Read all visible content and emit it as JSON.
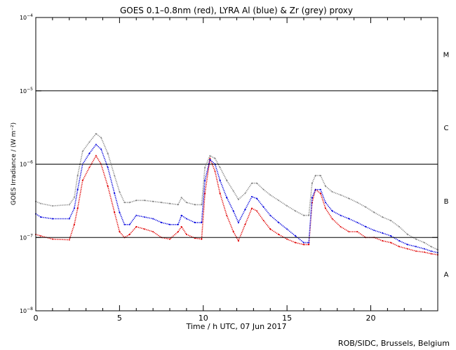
{
  "chart_data": {
    "type": "line",
    "title": "GOES 0.1–0.8nm (red), LYRA Al (blue) & Zr (grey) proxy",
    "xlabel": "Time / h UTC, 07 Jun 2017",
    "ylabel": "GOES Irradiance / (W m⁻²)",
    "xlim": [
      0,
      24
    ],
    "ylim": [
      1e-08,
      0.0001
    ],
    "yscale": "log",
    "x_ticks": [
      0,
      5,
      10,
      15,
      20
    ],
    "x_tick_labels": [
      "0",
      "5",
      "10",
      "15",
      "20"
    ],
    "y_tick_labels": [
      {
        "base": "10",
        "exp": "−4"
      },
      {
        "base": "10",
        "exp": "−5"
      },
      {
        "base": "10",
        "exp": "−6"
      },
      {
        "base": "10",
        "exp": "−7"
      },
      {
        "base": "10",
        "exp": "−8"
      }
    ],
    "flare_class_lines": [
      1e-05,
      1e-06,
      1e-07
    ],
    "flare_classes": [
      "M",
      "C",
      "B",
      "A"
    ],
    "credit": "ROB/SIDC, Brussels, Belgium",
    "colors": {
      "red": "#e00000",
      "blue": "#0000dd",
      "grey": "#888888"
    },
    "series": [
      {
        "color": "red",
        "x": [
          0,
          0.3,
          1,
          2,
          2.3,
          2.5,
          2.8,
          3.2,
          3.6,
          3.9,
          4.3,
          4.7,
          5.0,
          5.3,
          5.6,
          6.0,
          6.5,
          7.0,
          7.5,
          8.0,
          8.5,
          8.7,
          9.0,
          9.5,
          9.9,
          10.1,
          10.4,
          10.7,
          11.0,
          11.4,
          11.8,
          12.1,
          12.5,
          12.9,
          13.2,
          13.6,
          14.0,
          14.5,
          15.0,
          15.5,
          16.0,
          16.3,
          16.5,
          16.7,
          17.0,
          17.3,
          17.7,
          18.2,
          18.7,
          19.2,
          19.7,
          20.2,
          20.7,
          21.2,
          21.7,
          22.2,
          22.7,
          23.2,
          23.6,
          24
        ],
        "y": [
          1.1e-07,
          1.05e-07,
          9.5e-08,
          9.3e-08,
          1.5e-07,
          2.5e-07,
          6e-07,
          9e-07,
          1.3e-06,
          1e-06,
          5e-07,
          2.2e-07,
          1.2e-07,
          1e-07,
          1.1e-07,
          1.4e-07,
          1.3e-07,
          1.2e-07,
          1e-07,
          9.5e-08,
          1.2e-07,
          1.4e-07,
          1.1e-07,
          9.8e-08,
          9.5e-08,
          4e-07,
          1.2e-06,
          8e-07,
          4e-07,
          2e-07,
          1.2e-07,
          9e-08,
          1.5e-07,
          2.5e-07,
          2.3e-07,
          1.7e-07,
          1.3e-07,
          1.1e-07,
          9.5e-08,
          8.5e-08,
          8e-08,
          8e-08,
          3e-07,
          4.5e-07,
          4e-07,
          2.5e-07,
          1.8e-07,
          1.4e-07,
          1.2e-07,
          1.2e-07,
          1e-07,
          1e-07,
          9e-08,
          8.5e-08,
          7.5e-08,
          7e-08,
          6.5e-08,
          6.3e-08,
          6e-08,
          5.8e-08
        ]
      },
      {
        "color": "blue",
        "x": [
          0,
          0.3,
          1,
          2,
          2.3,
          2.5,
          2.8,
          3.2,
          3.6,
          3.9,
          4.3,
          4.7,
          5.0,
          5.3,
          5.6,
          6.0,
          6.5,
          7.0,
          7.5,
          8.0,
          8.5,
          8.7,
          9.0,
          9.5,
          9.9,
          10.1,
          10.4,
          10.7,
          11.0,
          11.4,
          11.8,
          12.1,
          12.5,
          12.9,
          13.2,
          13.6,
          14.0,
          14.5,
          15.0,
          15.5,
          16.0,
          16.3,
          16.5,
          16.7,
          17.0,
          17.3,
          17.7,
          18.2,
          18.7,
          19.2,
          19.7,
          20.2,
          20.7,
          21.2,
          21.7,
          22.2,
          22.7,
          23.2,
          23.6,
          24
        ],
        "y": [
          2.1e-07,
          1.9e-07,
          1.8e-07,
          1.8e-07,
          2.5e-07,
          4.5e-07,
          1e-06,
          1.4e-06,
          1.85e-06,
          1.6e-06,
          9e-07,
          4e-07,
          2.2e-07,
          1.5e-07,
          1.5e-07,
          2e-07,
          1.9e-07,
          1.8e-07,
          1.6e-07,
          1.5e-07,
          1.5e-07,
          2e-07,
          1.8e-07,
          1.6e-07,
          1.6e-07,
          6e-07,
          1.15e-06,
          1e-06,
          6e-07,
          3.5e-07,
          2.3e-07,
          1.6e-07,
          2.4e-07,
          3.6e-07,
          3.4e-07,
          2.6e-07,
          2e-07,
          1.6e-07,
          1.3e-07,
          1.05e-07,
          8.5e-08,
          8.5e-08,
          3.5e-07,
          4.5e-07,
          4.5e-07,
          3e-07,
          2.3e-07,
          2e-07,
          1.8e-07,
          1.6e-07,
          1.4e-07,
          1.25e-07,
          1.15e-07,
          1.05e-07,
          9e-08,
          8e-08,
          7.5e-08,
          7e-08,
          6.5e-08,
          6.2e-08
        ]
      },
      {
        "color": "grey",
        "x": [
          0,
          0.3,
          1,
          2,
          2.3,
          2.5,
          2.8,
          3.2,
          3.6,
          3.9,
          4.3,
          4.7,
          5.0,
          5.3,
          5.6,
          6.0,
          6.5,
          7.0,
          7.5,
          8.0,
          8.5,
          8.7,
          9.0,
          9.5,
          9.9,
          10.1,
          10.4,
          10.7,
          11.0,
          11.4,
          11.8,
          12.1,
          12.5,
          12.9,
          13.2,
          13.6,
          14.0,
          14.5,
          15.0,
          15.5,
          16.0,
          16.3,
          16.5,
          16.7,
          17.0,
          17.3,
          17.7,
          18.2,
          18.7,
          19.2,
          19.7,
          20.2,
          20.7,
          21.2,
          21.7,
          22.2,
          22.7,
          23.2,
          23.6,
          24
        ],
        "y": [
          3.1e-07,
          2.9e-07,
          2.7e-07,
          2.8e-07,
          3.5e-07,
          7e-07,
          1.5e-06,
          2e-06,
          2.6e-06,
          2.3e-06,
          1.4e-06,
          7e-07,
          4.2e-07,
          3e-07,
          3e-07,
          3.2e-07,
          3.2e-07,
          3.1e-07,
          3e-07,
          2.9e-07,
          2.8e-07,
          3.5e-07,
          3e-07,
          2.8e-07,
          2.8e-07,
          9e-07,
          1.3e-06,
          1.2e-06,
          9e-07,
          6e-07,
          4.3e-07,
          3.3e-07,
          4e-07,
          5.5e-07,
          5.5e-07,
          4.5e-07,
          3.8e-07,
          3.2e-07,
          2.7e-07,
          2.3e-07,
          2e-07,
          2e-07,
          5.5e-07,
          7e-07,
          7e-07,
          5e-07,
          4.2e-07,
          3.8e-07,
          3.4e-07,
          3e-07,
          2.6e-07,
          2.2e-07,
          1.9e-07,
          1.7e-07,
          1.4e-07,
          1.1e-07,
          9.5e-08,
          8.5e-08,
          7.5e-08,
          6.8e-08
        ]
      }
    ]
  }
}
